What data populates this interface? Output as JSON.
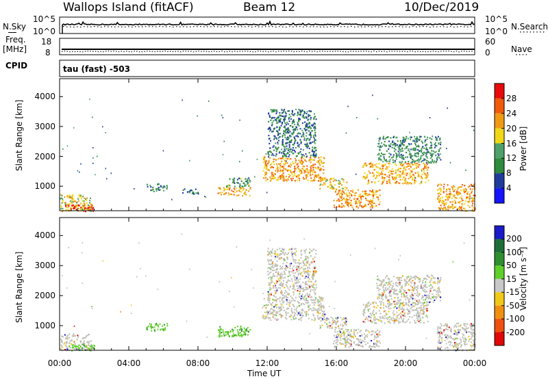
{
  "header": {
    "station": "Wallops Island (fitACF)",
    "beam": "Beam 12",
    "date": "10/Dec/2019"
  },
  "strip_panels": {
    "nsky": {
      "left_label": "N.Sky",
      "right_label": "N.Search",
      "left_ticks": [
        "10^5",
        "10^0"
      ],
      "right_ticks": [
        "10^5",
        "10^0"
      ]
    },
    "freq": {
      "left_label_line1": "Freq.",
      "left_label_line2": "[MHz]",
      "right_label": "Nave",
      "left_ticks": [
        "18",
        "8"
      ],
      "right_ticks": [
        "60",
        "0"
      ]
    },
    "cpid": {
      "left_label": "CPID",
      "value_text": "tau (fast) -503"
    }
  },
  "colors": {
    "power_scale": [
      "#1414ff",
      "#1f3c9c",
      "#2e8a3c",
      "#4fa06a",
      "#f0d818",
      "#f09a14",
      "#f05a0a",
      "#e80a0a"
    ],
    "velocity_scale": [
      "#1a1ac8",
      "#1f6e3a",
      "#2f8f2f",
      "#5fd02a",
      "#c8c8c8",
      "#f0c818",
      "#f09010",
      "#f05010",
      "#e00808"
    ],
    "velocity_gray": "#c0c0b8"
  },
  "chart_data": [
    {
      "type": "heatmap",
      "name": "power",
      "ylabel": "Slant Range [km]",
      "yticks": [
        "1000",
        "2000",
        "3000",
        "4000"
      ],
      "ylim": [
        180,
        4600
      ],
      "xlim": [
        0,
        24
      ],
      "colorbar": {
        "label": "Power [dB]",
        "ticks": [
          "4",
          "8",
          "12",
          "16",
          "20",
          "24",
          "28"
        ],
        "range": [
          0,
          32
        ]
      },
      "regions": [
        {
          "t0": 0.0,
          "t1": 1.8,
          "r0": 180,
          "r1": 750,
          "level": 18
        },
        {
          "t0": 0.3,
          "t1": 2.0,
          "r0": 180,
          "r1": 400,
          "level": 27
        },
        {
          "t0": 5.0,
          "t1": 6.2,
          "r0": 850,
          "r1": 1100,
          "level": 10
        },
        {
          "t0": 7.0,
          "t1": 8.0,
          "r0": 750,
          "r1": 950,
          "level": 8
        },
        {
          "t0": 9.1,
          "t1": 11.0,
          "r0": 700,
          "r1": 1000,
          "level": 21
        },
        {
          "t0": 9.6,
          "t1": 11.0,
          "r0": 1000,
          "r1": 1300,
          "level": 12
        },
        {
          "t0": 11.7,
          "t1": 15.3,
          "r0": 1200,
          "r1": 2000,
          "level": 22
        },
        {
          "t0": 12.0,
          "t1": 14.8,
          "r0": 2000,
          "r1": 3600,
          "level": 9
        },
        {
          "t0": 15.0,
          "t1": 16.6,
          "r0": 900,
          "r1": 1300,
          "level": 19
        },
        {
          "t0": 15.8,
          "t1": 18.5,
          "r0": 300,
          "r1": 900,
          "level": 23
        },
        {
          "t0": 17.5,
          "t1": 21.3,
          "r0": 1100,
          "r1": 1800,
          "level": 21
        },
        {
          "t0": 18.3,
          "t1": 22.0,
          "r0": 1800,
          "r1": 2700,
          "level": 11
        },
        {
          "t0": 21.8,
          "t1": 24.0,
          "r0": 180,
          "r1": 1100,
          "level": 22
        }
      ]
    },
    {
      "type": "heatmap",
      "name": "velocity",
      "ylabel": "Slant Range [km]",
      "yticks": [
        "1000",
        "2000",
        "3000",
        "4000"
      ],
      "ylim": [
        180,
        4600
      ],
      "xlim": [
        0,
        24
      ],
      "xticks": [
        "00:00",
        "04:00",
        "08:00",
        "12:00",
        "16:00",
        "20:00",
        "00:00"
      ],
      "xlabel": "Time UT",
      "colorbar": {
        "label": "Velocity [m s⁻¹]",
        "ticks": [
          "200",
          "100",
          "50",
          "15",
          "-15",
          "-50",
          "-100",
          "-200"
        ],
        "range": [
          -250,
          250
        ]
      },
      "regions": [
        {
          "t0": 0.0,
          "t1": 1.8,
          "r0": 180,
          "r1": 750,
          "vel": 0
        },
        {
          "t0": 0.5,
          "t1": 2.0,
          "r0": 180,
          "r1": 400,
          "vel": 30
        },
        {
          "t0": 5.0,
          "t1": 6.2,
          "r0": 850,
          "r1": 1100,
          "vel": 40
        },
        {
          "t0": 9.1,
          "t1": 11.0,
          "r0": 650,
          "r1": 1000,
          "vel": 35
        },
        {
          "t0": 11.7,
          "t1": 15.3,
          "r0": 1200,
          "r1": 2000,
          "vel": 0
        },
        {
          "t0": 12.0,
          "t1": 14.8,
          "r0": 2000,
          "r1": 3600,
          "vel": 0
        },
        {
          "t0": 15.0,
          "t1": 16.6,
          "r0": 900,
          "r1": 1300,
          "vel": 0
        },
        {
          "t0": 15.8,
          "t1": 18.5,
          "r0": 300,
          "r1": 900,
          "vel": 0
        },
        {
          "t0": 17.5,
          "t1": 21.3,
          "r0": 1100,
          "r1": 1800,
          "vel": 0
        },
        {
          "t0": 18.3,
          "t1": 22.0,
          "r0": 1800,
          "r1": 2700,
          "vel": 0
        },
        {
          "t0": 21.8,
          "t1": 24.0,
          "r0": 180,
          "r1": 1100,
          "vel": 0
        }
      ]
    }
  ]
}
